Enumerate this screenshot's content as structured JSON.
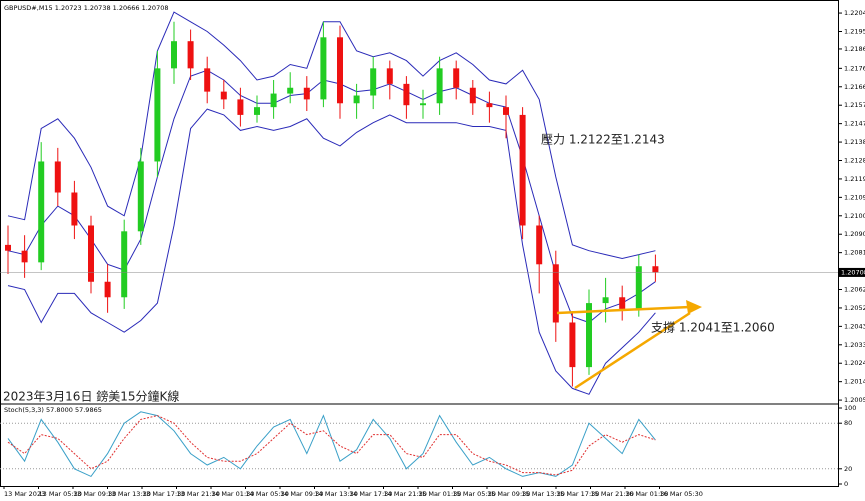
{
  "chart_data": [
    {
      "type": "candlestick",
      "title": "GBPUSD#,M15  1.20723 1.20738 1.20666 1.20708",
      "open": [
        1.2085,
        1.2082,
        1.2076,
        1.2128,
        1.2112,
        1.2095,
        1.2066,
        1.2058,
        1.2092,
        1.2128,
        1.2176,
        1.219,
        1.2176,
        1.2164,
        1.216,
        1.2152,
        1.2156,
        1.2163,
        1.2166,
        1.216,
        1.2192,
        1.2158,
        1.2162,
        1.2176,
        1.2168,
        1.2157,
        1.2158,
        1.2176,
        1.2166,
        1.2158,
        1.2156,
        1.2152,
        1.2095,
        1.2075,
        1.2045,
        1.2022,
        1.2055,
        1.2058,
        1.2052,
        1.2074
      ],
      "high": [
        1.2095,
        1.209,
        1.2138,
        1.2135,
        1.2118,
        1.21,
        1.2075,
        1.2098,
        1.2135,
        1.2185,
        1.22,
        1.2196,
        1.2182,
        1.217,
        1.2166,
        1.2162,
        1.217,
        1.2174,
        1.2172,
        1.22,
        1.2198,
        1.2168,
        1.2182,
        1.218,
        1.2172,
        1.2165,
        1.2182,
        1.218,
        1.217,
        1.2164,
        1.2162,
        1.2156,
        1.21,
        1.2082,
        1.205,
        1.2062,
        1.2068,
        1.2064,
        1.208,
        1.208
      ],
      "low": [
        1.207,
        1.2068,
        1.2072,
        1.2105,
        1.2088,
        1.206,
        1.205,
        1.2052,
        1.2085,
        1.212,
        1.2168,
        1.217,
        1.2158,
        1.2155,
        1.2146,
        1.2148,
        1.215,
        1.2158,
        1.2154,
        1.2156,
        1.215,
        1.215,
        1.2155,
        1.216,
        1.215,
        1.215,
        1.2152,
        1.216,
        1.2152,
        1.2148,
        1.214,
        1.2088,
        1.206,
        1.2035,
        1.2012,
        1.2018,
        1.2045,
        1.2046,
        1.2048,
        1.2066
      ],
      "close": [
        1.2082,
        1.2076,
        1.2128,
        1.2112,
        1.2095,
        1.2066,
        1.2058,
        1.2092,
        1.2128,
        1.2176,
        1.219,
        1.2176,
        1.2164,
        1.216,
        1.2152,
        1.2156,
        1.2163,
        1.2166,
        1.216,
        1.2192,
        1.2158,
        1.2162,
        1.2176,
        1.2168,
        1.2157,
        1.2158,
        1.2176,
        1.2166,
        1.2158,
        1.2156,
        1.2152,
        1.2095,
        1.2075,
        1.2045,
        1.2022,
        1.2055,
        1.2058,
        1.2052,
        1.2074,
        1.20708
      ],
      "up_color": "#22cc22",
      "down_color": "#ee1111",
      "series": [
        {
          "color": "#2a2ab8",
          "values": [
            1.21,
            1.2098,
            1.2145,
            1.215,
            1.214,
            1.2125,
            1.2105,
            1.21,
            1.213,
            1.2185,
            1.2205,
            1.22,
            1.2195,
            1.2188,
            1.218,
            1.217,
            1.2172,
            1.2178,
            1.2176,
            1.22,
            1.22,
            1.2185,
            1.2182,
            1.2184,
            1.218,
            1.2172,
            1.218,
            1.2184,
            1.2178,
            1.217,
            1.2168,
            1.2175,
            1.216,
            1.212,
            1.2085,
            1.2082,
            1.208,
            1.2078,
            1.208,
            1.2082
          ]
        },
        {
          "color": "#2a2ab8",
          "values": [
            1.2082,
            1.208,
            1.2095,
            1.2105,
            1.21,
            1.2088,
            1.2075,
            1.2072,
            1.2088,
            1.212,
            1.215,
            1.2172,
            1.2175,
            1.217,
            1.2162,
            1.2158,
            1.2158,
            1.2162,
            1.2163,
            1.217,
            1.2168,
            1.2164,
            1.2165,
            1.2168,
            1.2164,
            1.216,
            1.2164,
            1.2166,
            1.2162,
            1.2158,
            1.2156,
            1.213,
            1.21,
            1.207,
            1.2048,
            1.2045,
            1.2052,
            1.2055,
            1.206,
            1.2066
          ]
        },
        {
          "color": "#2a2ab8",
          "values": [
            1.2064,
            1.2062,
            1.2045,
            1.206,
            1.206,
            1.205,
            1.2045,
            1.204,
            1.2046,
            1.2055,
            1.2095,
            1.2145,
            1.2155,
            1.2152,
            1.2144,
            1.2146,
            1.2144,
            1.2146,
            1.215,
            1.214,
            1.2136,
            1.2143,
            1.2148,
            1.2152,
            1.2148,
            1.2148,
            1.2148,
            1.2148,
            1.2146,
            1.2146,
            1.2144,
            1.2085,
            1.204,
            1.202,
            1.2011,
            1.2008,
            1.2024,
            1.2032,
            1.204,
            1.205
          ]
        }
      ],
      "ylim": [
        1.20035,
        1.22102
      ],
      "yticks": [
        1.22045,
        {
          "value": 1.2195,
          "label": "1.21950"
        },
        {
          "value": 1.2186,
          "label": "1.21860"
        },
        {
          "value": 1.2176,
          "label": "1.21760"
        },
        1.21665,
        {
          "value": 1.2157,
          "label": "1.21570"
        },
        1.21475,
        {
          "value": 1.2138,
          "label": "1.21380"
        },
        1.21285,
        {
          "value": 1.2119,
          "label": "1.21190"
        },
        1.21095,
        {
          "value": 1.21,
          "label": "1.21000"
        },
        1.20905,
        {
          "value": 1.2081,
          "label": "1.20810"
        },
        {
          "value": 1.2062,
          "label": "1.20620"
        },
        1.20525,
        {
          "value": 1.2043,
          "label": "1.20430"
        },
        1.20335,
        {
          "value": 1.2024,
          "label": "1.20240"
        },
        1.20145,
        {
          "value": 1.2005,
          "label": "1.20050"
        }
      ],
      "last_price": 1.20708,
      "annotations": [
        "壓力 1.2122至1.2143",
        "支撐 1.2041至1.2060",
        "2023年3月16日 鎊美15分鐘K線"
      ],
      "x_labels": [
        "13 Mar 2023",
        "13 Mar 05:30",
        "13 Mar 09:30",
        "13 Mar 13:30",
        "13 Mar 17:30",
        "13 Mar 21:30",
        "14 Mar 01:30",
        "14 Mar 05:30",
        "14 Mar 09:30",
        "14 Mar 13:30",
        "14 Mar 17:30",
        "14 Mar 21:30",
        "15 Mar 01:30",
        "15 Mar 05:30",
        "15 Mar 09:30",
        "15 Mar 13:30",
        "15 Mar 17:30",
        "15 Mar 21:30",
        "16 Mar 01:30",
        "16 Mar 05:30"
      ]
    },
    {
      "type": "line",
      "title": "Stoch(5,3,3) 57.8000 57.9865",
      "series": [
        {
          "color": "#3aa0c8",
          "values": [
            60,
            30,
            85,
            55,
            20,
            10,
            40,
            80,
            95,
            90,
            70,
            40,
            25,
            35,
            20,
            50,
            75,
            85,
            40,
            90,
            30,
            45,
            85,
            60,
            20,
            40,
            90,
            55,
            25,
            35,
            20,
            10,
            15,
            10,
            25,
            80,
            60,
            40,
            85,
            58
          ]
        },
        {
          "color": "#e03030",
          "dashed": true,
          "values": [
            55,
            40,
            65,
            60,
            40,
            20,
            30,
            60,
            85,
            90,
            80,
            55,
            35,
            30,
            30,
            40,
            60,
            80,
            65,
            70,
            50,
            40,
            65,
            65,
            40,
            35,
            65,
            65,
            40,
            30,
            25,
            15,
            15,
            12,
            18,
            50,
            65,
            55,
            65,
            58
          ]
        }
      ],
      "ylim": [
        0,
        100
      ],
      "yticks": [
        100,
        80,
        20,
        0
      ]
    }
  ]
}
